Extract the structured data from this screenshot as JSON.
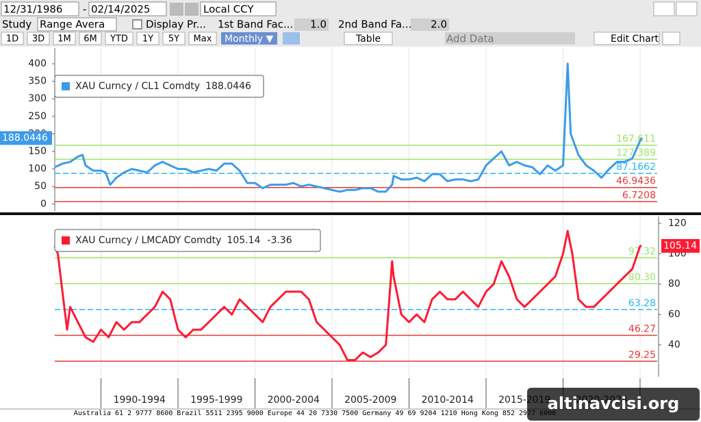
{
  "toolbar": {
    "start_date": "12/31/1986",
    "date_sep": "-",
    "end_date": "02/14/2025",
    "currency": "Local CCY",
    "study_label": "Study",
    "study": "Range Avera",
    "display": "Display Pr...",
    "band1_label": "1st Band Fac...",
    "band1": "1.0",
    "band2_label": "2nd Band Fa...",
    "band2": "2.0",
    "periods": [
      "1D",
      "3D",
      "1M",
      "6M",
      "YTD",
      "1Y",
      "5Y",
      "Max"
    ],
    "frequency": "Monthly ▼",
    "table": "Table",
    "add_data": "Add Data",
    "edit_chart": "Edit Chart"
  },
  "footer": "Australia 61 2 9777 8600 Brazil 5511 2395 9000 Europe 44 20 7330 7500 Germany 49 69 9204 1210 Hong Kong 852 2977 6000",
  "watermark": "altinavcisi.org",
  "chart_data": [
    {
      "type": "line",
      "y_axis_side": "left",
      "xlim": [
        1987,
        2026.2
      ],
      "xticks": [
        1990,
        1995,
        2000,
        2005,
        2010,
        2015,
        2020,
        2025
      ],
      "ylim": [
        -20,
        445
      ],
      "yticks": [
        0,
        50,
        100,
        150,
        200,
        250,
        300,
        350,
        400
      ],
      "x": [
        1987,
        1987.5,
        1988,
        1988.5,
        1988.8,
        1989,
        1989.5,
        1990,
        1990.3,
        1990.6,
        1991,
        1991.5,
        1992,
        1992.5,
        1993,
        1993.5,
        1994,
        1994.5,
        1995,
        1995.5,
        1996,
        1996.5,
        1997,
        1997.5,
        1998,
        1998.5,
        1999,
        1999.5,
        2000,
        2000.5,
        2001,
        2001.5,
        2002,
        2002.5,
        2003,
        2003.5,
        2004,
        2004.5,
        2005,
        2005.5,
        2006,
        2006.5,
        2007,
        2007.5,
        2008,
        2008.5,
        2008.9,
        2009,
        2009.5,
        2010,
        2010.5,
        2011,
        2011.5,
        2012,
        2012.5,
        2013,
        2013.5,
        2014,
        2014.5,
        2015,
        2015.5,
        2016,
        2016.5,
        2017,
        2017.5,
        2018,
        2018.5,
        2019,
        2019.5,
        2020,
        2020.3,
        2020.5,
        2021,
        2021.5,
        2022,
        2022.5,
        2023,
        2023.5,
        2024,
        2024.5,
        2025,
        2025.1
      ],
      "series": [
        {
          "name": "XAU Curncy / CL1 Comdty",
          "last_value": 188.0446,
          "color": "#3d9be9",
          "values": [
            105,
            115,
            120,
            135,
            140,
            110,
            95,
            95,
            90,
            55,
            75,
            90,
            100,
            95,
            90,
            110,
            120,
            110,
            100,
            100,
            90,
            95,
            100,
            95,
            115,
            115,
            95,
            60,
            60,
            45,
            55,
            55,
            55,
            60,
            50,
            55,
            50,
            45,
            40,
            35,
            40,
            40,
            45,
            45,
            35,
            35,
            55,
            80,
            70,
            70,
            75,
            65,
            85,
            85,
            65,
            70,
            70,
            65,
            70,
            110,
            130,
            150,
            110,
            120,
            110,
            105,
            85,
            110,
            95,
            110,
            400,
            200,
            140,
            110,
            95,
            75,
            100,
            120,
            120,
            130,
            180,
            188
          ]
        }
      ],
      "bands": [
        {
          "value": 167.611,
          "color": "#9be36a"
        },
        {
          "value": 127.389,
          "color": "#9be36a"
        },
        {
          "value": 87.1662,
          "color": "#29b6f6",
          "dash": true
        },
        {
          "value": 46.9436,
          "color": "#e53935"
        },
        {
          "value": 6.7208,
          "color": "#e53935"
        }
      ]
    },
    {
      "type": "line",
      "y_axis_side": "right",
      "xlim": [
        1987,
        2026.2
      ],
      "xticks": [
        1990,
        1995,
        2000,
        2005,
        2010,
        2015,
        2020,
        2025
      ],
      "x_periods": [
        "1990-1994",
        "1995-1999",
        "2000-2004",
        "2005-2009",
        "2010-2014",
        "2015-2019",
        "2020-2024"
      ],
      "ylim": [
        19,
        124.5
      ],
      "yticks": [
        40,
        60,
        80,
        100,
        120
      ],
      "x": [
        1987,
        1987.2,
        1987.5,
        1987.8,
        1988,
        1988.5,
        1989,
        1989.5,
        1990,
        1990.5,
        1991,
        1991.5,
        1992,
        1992.5,
        1993,
        1993.5,
        1994,
        1994.5,
        1995,
        1995.5,
        1996,
        1996.5,
        1997,
        1997.5,
        1998,
        1998.5,
        1999,
        1999.5,
        2000,
        2000.5,
        2001,
        2001.5,
        2002,
        2002.5,
        2003,
        2003.5,
        2004,
        2004.5,
        2005,
        2005.5,
        2006,
        2006.5,
        2007,
        2007.5,
        2008,
        2008.5,
        2008.9,
        2009,
        2009.5,
        2010,
        2010.5,
        2011,
        2011.5,
        2012,
        2012.5,
        2013,
        2013.5,
        2014,
        2014.5,
        2015,
        2015.5,
        2016,
        2016.5,
        2017,
        2017.5,
        2018,
        2018.5,
        2019,
        2019.5,
        2020,
        2020.3,
        2020.6,
        2021,
        2021.5,
        2022,
        2022.5,
        2023,
        2023.5,
        2024,
        2024.5,
        2025,
        2025.1
      ],
      "series": [
        {
          "name": "XAU Curncy / LMCADY Comdty",
          "last_value": 105.14,
          "change": -3.36,
          "color": "#ff1a33",
          "values": [
            105,
            100,
            75,
            50,
            65,
            55,
            45,
            42,
            50,
            45,
            55,
            50,
            55,
            55,
            60,
            65,
            75,
            70,
            50,
            45,
            50,
            50,
            55,
            60,
            65,
            60,
            70,
            65,
            60,
            55,
            65,
            70,
            75,
            75,
            75,
            70,
            55,
            50,
            45,
            40,
            30,
            30,
            35,
            32,
            35,
            40,
            95,
            85,
            60,
            55,
            60,
            55,
            70,
            75,
            70,
            70,
            75,
            70,
            65,
            75,
            80,
            95,
            85,
            70,
            65,
            70,
            75,
            80,
            85,
            100,
            115,
            100,
            70,
            65,
            65,
            70,
            75,
            80,
            85,
            90,
            105,
            105.14
          ]
        }
      ],
      "bands": [
        {
          "value": 97.32,
          "color": "#9be36a"
        },
        {
          "value": 80.3,
          "label": "80.30",
          "color": "#9be36a"
        },
        {
          "value": 63.28,
          "color": "#29b6f6",
          "dash": true
        },
        {
          "value": 46.27,
          "color": "#e53935"
        },
        {
          "value": 29.25,
          "color": "#e53935"
        }
      ]
    }
  ]
}
